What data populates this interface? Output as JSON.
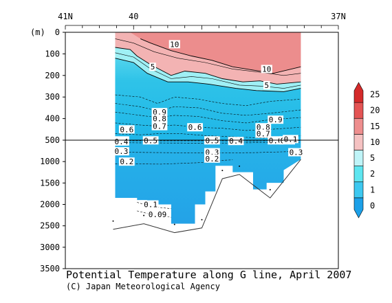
{
  "chart_data": {
    "type": "heatmap",
    "title": "Potential Temperature along G line, April 2007",
    "credit": "(C) Japan Meteorological Agency",
    "xlabel": "",
    "ylabel": "(m)",
    "xlim": [
      41,
      37
    ],
    "x_ticks": [
      "41N",
      "40",
      "37N"
    ],
    "y_upper_ticks": [
      0,
      100,
      200,
      300,
      400,
      500
    ],
    "y_lower_ticks": [
      1000,
      1500,
      2000,
      2500,
      3000,
      3500
    ],
    "y_break_depth": 500,
    "colorbar": {
      "levels": [
        0,
        1,
        2,
        5,
        10,
        15,
        20,
        25
      ],
      "labels": [
        "0",
        "1",
        "2",
        "5",
        "10",
        "15",
        "20",
        "25"
      ],
      "colors": [
        "#1ca0e8",
        "#3dc8f0",
        "#5ee6f0",
        "#bff4f8",
        "#f5c2c2",
        "#ee8e8e",
        "#e45454",
        "#d42a2a"
      ]
    },
    "section_lat_range": [
      40.27,
      37.55
    ],
    "sea_floor": [
      {
        "lat": 40.3,
        "depth": 2580
      },
      {
        "lat": 39.85,
        "depth": 2450
      },
      {
        "lat": 39.4,
        "depth": 2660
      },
      {
        "lat": 39.0,
        "depth": 2550
      },
      {
        "lat": 38.7,
        "depth": 1400
      },
      {
        "lat": 38.45,
        "depth": 1300
      },
      {
        "lat": 38.0,
        "depth": 1850
      },
      {
        "lat": 37.55,
        "depth": 950
      }
    ],
    "contour_labels": [
      {
        "text": "10",
        "lat": 39.4,
        "depth": 55
      },
      {
        "text": "10",
        "lat": 38.05,
        "depth": 170
      },
      {
        "text": "5",
        "lat": 39.72,
        "depth": 160
      },
      {
        "text": "5",
        "lat": 38.05,
        "depth": 245
      },
      {
        "text": "0.9",
        "lat": 39.62,
        "depth": 370
      },
      {
        "text": "0.8",
        "lat": 39.62,
        "depth": 400
      },
      {
        "text": "0.7",
        "lat": 39.62,
        "depth": 435
      },
      {
        "text": "0.9",
        "lat": 37.92,
        "depth": 405
      },
      {
        "text": "0.8",
        "lat": 38.1,
        "depth": 440
      },
      {
        "text": "0.7",
        "lat": 38.1,
        "depth": 470
      },
      {
        "text": "0.6",
        "lat": 40.1,
        "depth": 450
      },
      {
        "text": "0.6",
        "lat": 39.1,
        "depth": 440
      },
      {
        "text": "0.5",
        "lat": 40.18,
        "depth": 505
      },
      {
        "text": "0.4",
        "lat": 40.18,
        "depth": 530
      },
      {
        "text": "0.3",
        "lat": 40.18,
        "depth": 760
      },
      {
        "text": "0.5",
        "lat": 39.75,
        "depth": 505
      },
      {
        "text": "0.5",
        "lat": 38.85,
        "depth": 505
      },
      {
        "text": "0.4",
        "lat": 38.5,
        "depth": 520
      },
      {
        "text": "0.3",
        "lat": 38.85,
        "depth": 780
      },
      {
        "text": "0.2",
        "lat": 40.1,
        "depth": 1000
      },
      {
        "text": "0.2",
        "lat": 38.85,
        "depth": 930
      },
      {
        "text": "0.6",
        "lat": 37.92,
        "depth": 505
      },
      {
        "text": "0.5",
        "lat": 37.75,
        "depth": 505
      },
      {
        "text": "0.1",
        "lat": 37.7,
        "depth": 495
      },
      {
        "text": "0.3",
        "lat": 37.62,
        "depth": 780
      },
      {
        "text": "0.1",
        "lat": 39.75,
        "depth": 2000
      },
      {
        "text": "0.09",
        "lat": 39.65,
        "depth": 2230
      }
    ]
  }
}
